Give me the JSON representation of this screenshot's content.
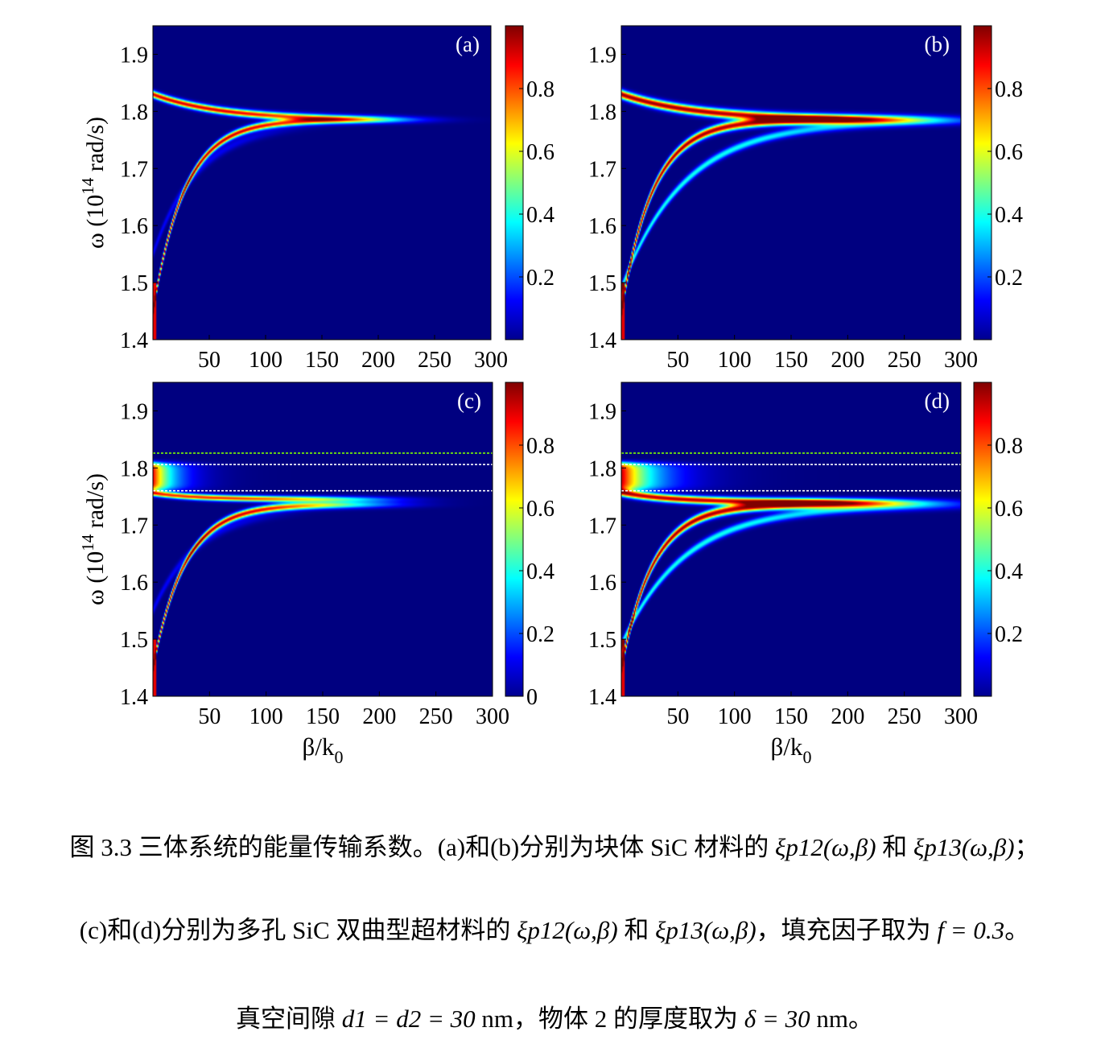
{
  "chart_data": [
    {
      "type": "heatmap",
      "panel_label": "(a)",
      "xlabel": "",
      "ylabel": "ω (10^14 rad/s)",
      "xlim": [
        0,
        300
      ],
      "ylim": [
        1.4,
        1.95
      ],
      "xticks": [
        50,
        100,
        150,
        200,
        250,
        300
      ],
      "yticks": [
        1.4,
        1.5,
        1.6,
        1.7,
        1.8,
        1.9
      ],
      "colorbar": {
        "range": [
          0,
          1
        ],
        "ticks": [
          "0.2",
          "0.4",
          "0.6",
          "0.8"
        ]
      },
      "branches": [
        {
          "omega_inf": 1.785,
          "omega_0": 1.83,
          "width": 0.006,
          "amp": 0.92,
          "beta_scale": 60,
          "cutoff": 190
        },
        {
          "omega_inf": 1.785,
          "omega_0": 1.45,
          "width": 0.006,
          "amp": 0.95,
          "beta_scale": 28,
          "cutoff": 190
        },
        {
          "omega_inf": 1.78,
          "omega_0": 1.55,
          "width": 0.008,
          "amp": 0.12,
          "beta_scale": 40,
          "cutoff": 120
        }
      ],
      "guide_lines": []
    },
    {
      "type": "heatmap",
      "panel_label": "(b)",
      "xlabel": "",
      "ylabel": "",
      "xlim": [
        0,
        300
      ],
      "ylim": [
        1.4,
        1.95
      ],
      "xticks": [
        50,
        100,
        150,
        200,
        250,
        300
      ],
      "yticks": [
        1.4,
        1.5,
        1.6,
        1.7,
        1.8,
        1.9
      ],
      "colorbar": {
        "range": [
          0,
          1
        ],
        "ticks": [
          "0.2",
          "0.4",
          "0.6",
          "0.8"
        ]
      },
      "branches": [
        {
          "omega_inf": 1.785,
          "omega_0": 1.83,
          "width": 0.0075,
          "amp": 0.98,
          "beta_scale": 65,
          "cutoff": 240
        },
        {
          "omega_inf": 1.785,
          "omega_0": 1.45,
          "width": 0.0075,
          "amp": 0.98,
          "beta_scale": 28,
          "cutoff": 240
        },
        {
          "omega_inf": 1.782,
          "omega_0": 1.49,
          "width": 0.007,
          "amp": 0.4,
          "beta_scale": 55,
          "cutoff": 250
        }
      ],
      "guide_lines": []
    },
    {
      "type": "heatmap",
      "panel_label": "(c)",
      "xlabel": "β/k0",
      "ylabel": "ω (10^14 rad/s)",
      "xlim": [
        0,
        300
      ],
      "ylim": [
        1.4,
        1.95
      ],
      "xticks": [
        50,
        100,
        150,
        200,
        250,
        300
      ],
      "yticks": [
        1.4,
        1.5,
        1.6,
        1.7,
        1.8,
        1.9
      ],
      "colorbar": {
        "range": [
          0,
          1
        ],
        "ticks": [
          "0",
          "0.2",
          "0.4",
          "0.6",
          "0.8"
        ]
      },
      "branches": [
        {
          "omega_inf": 1.736,
          "omega_0": 1.45,
          "width": 0.006,
          "amp": 0.95,
          "beta_scale": 28,
          "cutoff": 185
        },
        {
          "omega_inf": 1.745,
          "omega_0": 1.756,
          "width": 0.005,
          "amp": 0.85,
          "beta_scale": 40,
          "cutoff": 185
        },
        {
          "omega_inf": 1.73,
          "omega_0": 1.55,
          "width": 0.008,
          "amp": 0.12,
          "beta_scale": 40,
          "cutoff": 110
        }
      ],
      "blob": {
        "omega_center": 1.785,
        "omega_halfwidth": 0.025,
        "beta_scale": 18,
        "amp": 0.9
      },
      "guide_lines": [
        {
          "omega": 1.826,
          "color": "#7CFC00"
        },
        {
          "omega": 1.806,
          "color": "#ffffff"
        },
        {
          "omega": 1.76,
          "color": "#ffffff"
        }
      ]
    },
    {
      "type": "heatmap",
      "panel_label": "(d)",
      "xlabel": "β/k0",
      "ylabel": "",
      "xlim": [
        0,
        300
      ],
      "ylim": [
        1.4,
        1.95
      ],
      "xticks": [
        50,
        100,
        150,
        200,
        250,
        300
      ],
      "yticks": [
        1.4,
        1.5,
        1.6,
        1.7,
        1.8,
        1.9
      ],
      "colorbar": {
        "range": [
          0,
          1
        ],
        "ticks": [
          "0.2",
          "0.4",
          "0.6",
          "0.8"
        ]
      },
      "branches": [
        {
          "omega_inf": 1.736,
          "omega_0": 1.45,
          "width": 0.0075,
          "amp": 0.98,
          "beta_scale": 28,
          "cutoff": 235
        },
        {
          "omega_inf": 1.74,
          "omega_0": 1.757,
          "width": 0.0065,
          "amp": 0.95,
          "beta_scale": 45,
          "cutoff": 235
        },
        {
          "omega_inf": 1.733,
          "omega_0": 1.49,
          "width": 0.007,
          "amp": 0.4,
          "beta_scale": 55,
          "cutoff": 250
        }
      ],
      "blob": {
        "omega_center": 1.785,
        "omega_halfwidth": 0.025,
        "beta_scale": 28,
        "amp": 0.95
      },
      "guide_lines": [
        {
          "omega": 1.826,
          "color": "#7CFC00"
        },
        {
          "omega": 1.806,
          "color": "#ffffff"
        },
        {
          "omega": 1.76,
          "color": "#ffffff"
        }
      ]
    }
  ],
  "caption": {
    "line1_a": "图 3.3 三体系统的能量传输系数。(a)和(b)分别为块体 SiC 材料的 ",
    "line1_b": " 和 ",
    "line1_c": "；",
    "line2_a": "(c)和(d)分别为多孔 SiC 双曲型超材料的 ",
    "line2_b": " 和 ",
    "line2_c": "，填充因子取为 ",
    "line2_d": "。",
    "line3_a": "真空间隙 ",
    "line3_b": " nm，物体 2 的厚度取为 ",
    "line3_c": " nm。",
    "xi12": "ξp12(ω,β)",
    "xi13": "ξp13(ω,β)",
    "f_eq": "f = 0.3",
    "d_eq": "d1 = d2 = 30",
    "delta_eq": "δ = 30"
  }
}
